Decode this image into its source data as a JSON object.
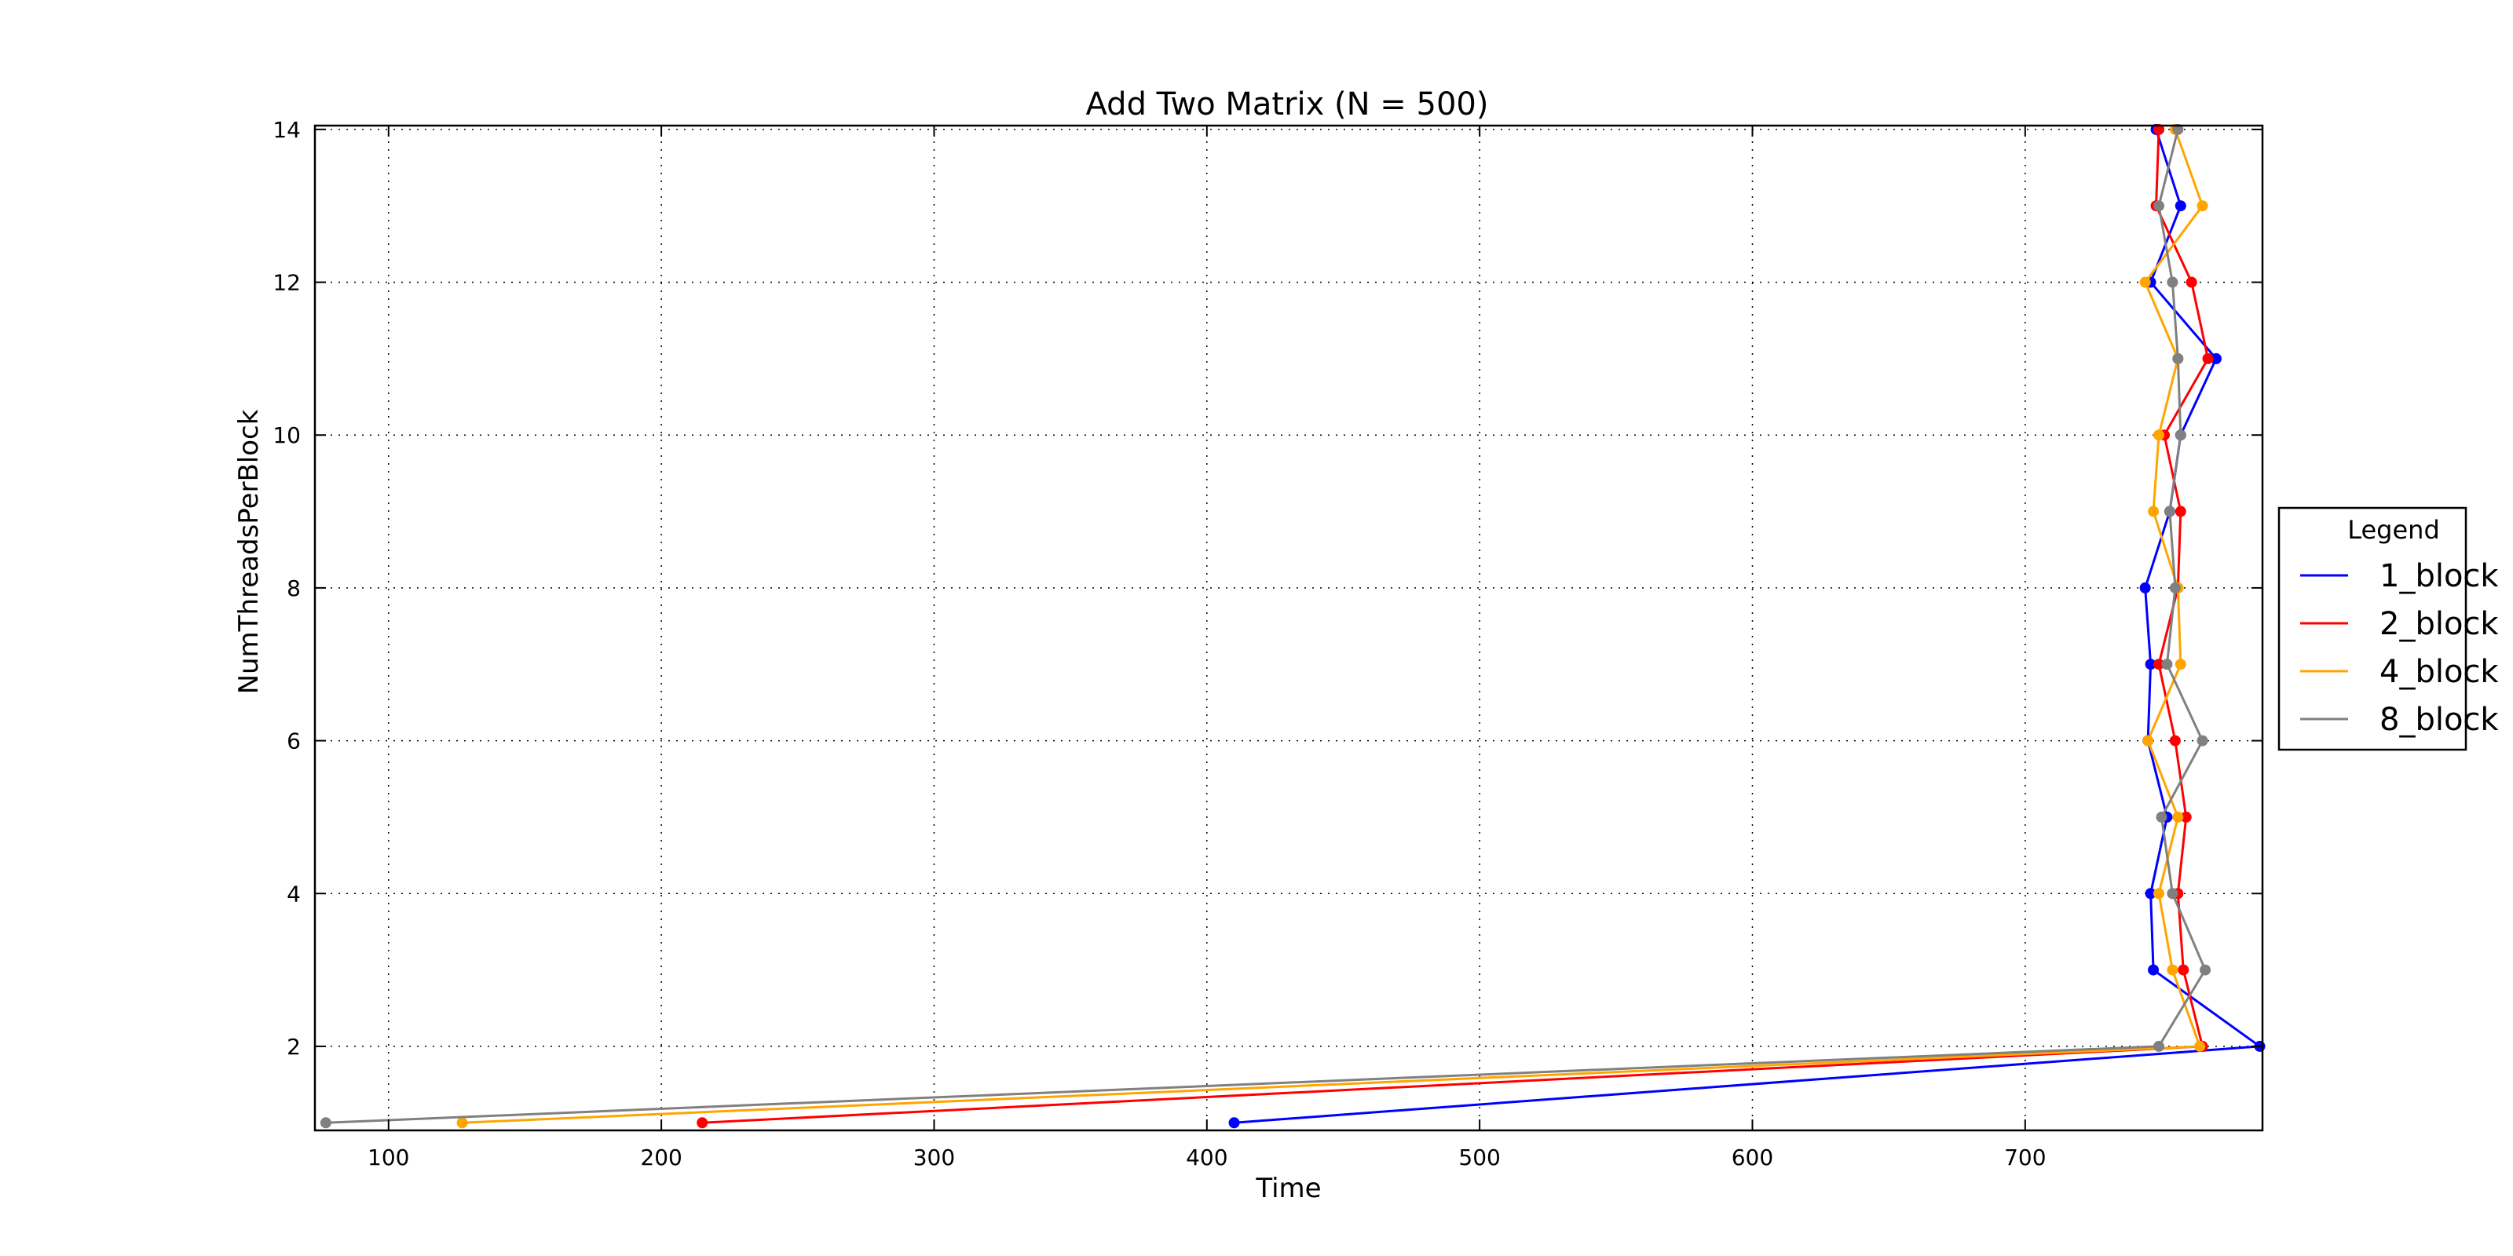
{
  "chart_data": {
    "type": "line",
    "title": "Add Two Matrix (N = 500)",
    "xlabel": "Time",
    "ylabel": "NumThreadsPerBlock",
    "xlim": [
      73,
      787
    ],
    "ylim": [
      0.9,
      14.05
    ],
    "xticks": [
      100,
      200,
      300,
      400,
      500,
      600,
      700
    ],
    "yticks": [
      2,
      4,
      6,
      8,
      10,
      12,
      14
    ],
    "grid": true,
    "legend": {
      "title": "Legend",
      "placement": "outside-right"
    },
    "series": [
      {
        "name": "1_block",
        "color": "#0000ff",
        "points": [
          [
            410,
            1
          ],
          [
            786,
            2
          ],
          [
            747,
            3
          ],
          [
            746,
            4
          ],
          [
            752,
            5
          ],
          [
            745,
            6
          ],
          [
            746,
            7
          ],
          [
            744,
            8
          ],
          [
            753,
            9
          ],
          [
            757,
            10
          ],
          [
            770,
            11
          ],
          [
            746,
            12
          ],
          [
            757,
            13
          ],
          [
            748,
            14
          ]
        ]
      },
      {
        "name": "2_block",
        "color": "#ff0000",
        "points": [
          [
            215,
            1
          ],
          [
            765,
            2
          ],
          [
            758,
            3
          ],
          [
            756,
            4
          ],
          [
            759,
            5
          ],
          [
            755,
            6
          ],
          [
            749,
            7
          ],
          [
            756,
            8
          ],
          [
            757,
            9
          ],
          [
            751,
            10
          ],
          [
            767,
            11
          ],
          [
            761,
            12
          ],
          [
            748,
            13
          ],
          [
            749,
            14
          ]
        ]
      },
      {
        "name": "4_block",
        "color": "#ffa500",
        "points": [
          [
            127,
            1
          ],
          [
            764,
            2
          ],
          [
            754,
            3
          ],
          [
            749,
            4
          ],
          [
            756,
            5
          ],
          [
            745,
            6
          ],
          [
            757,
            7
          ],
          [
            756,
            8
          ],
          [
            747,
            9
          ],
          [
            749,
            10
          ],
          [
            756,
            11
          ],
          [
            744,
            12
          ],
          [
            765,
            13
          ],
          [
            755,
            14
          ]
        ]
      },
      {
        "name": "8_block",
        "color": "#808080",
        "points": [
          [
            77,
            1
          ],
          [
            749,
            2
          ],
          [
            766,
            3
          ],
          [
            754,
            4
          ],
          [
            750,
            5
          ],
          [
            765,
            6
          ],
          [
            752,
            7
          ],
          [
            755,
            8
          ],
          [
            753,
            9
          ],
          [
            757,
            10
          ],
          [
            756,
            11
          ],
          [
            754,
            12
          ],
          [
            749,
            13
          ],
          [
            756,
            14
          ]
        ]
      }
    ]
  }
}
